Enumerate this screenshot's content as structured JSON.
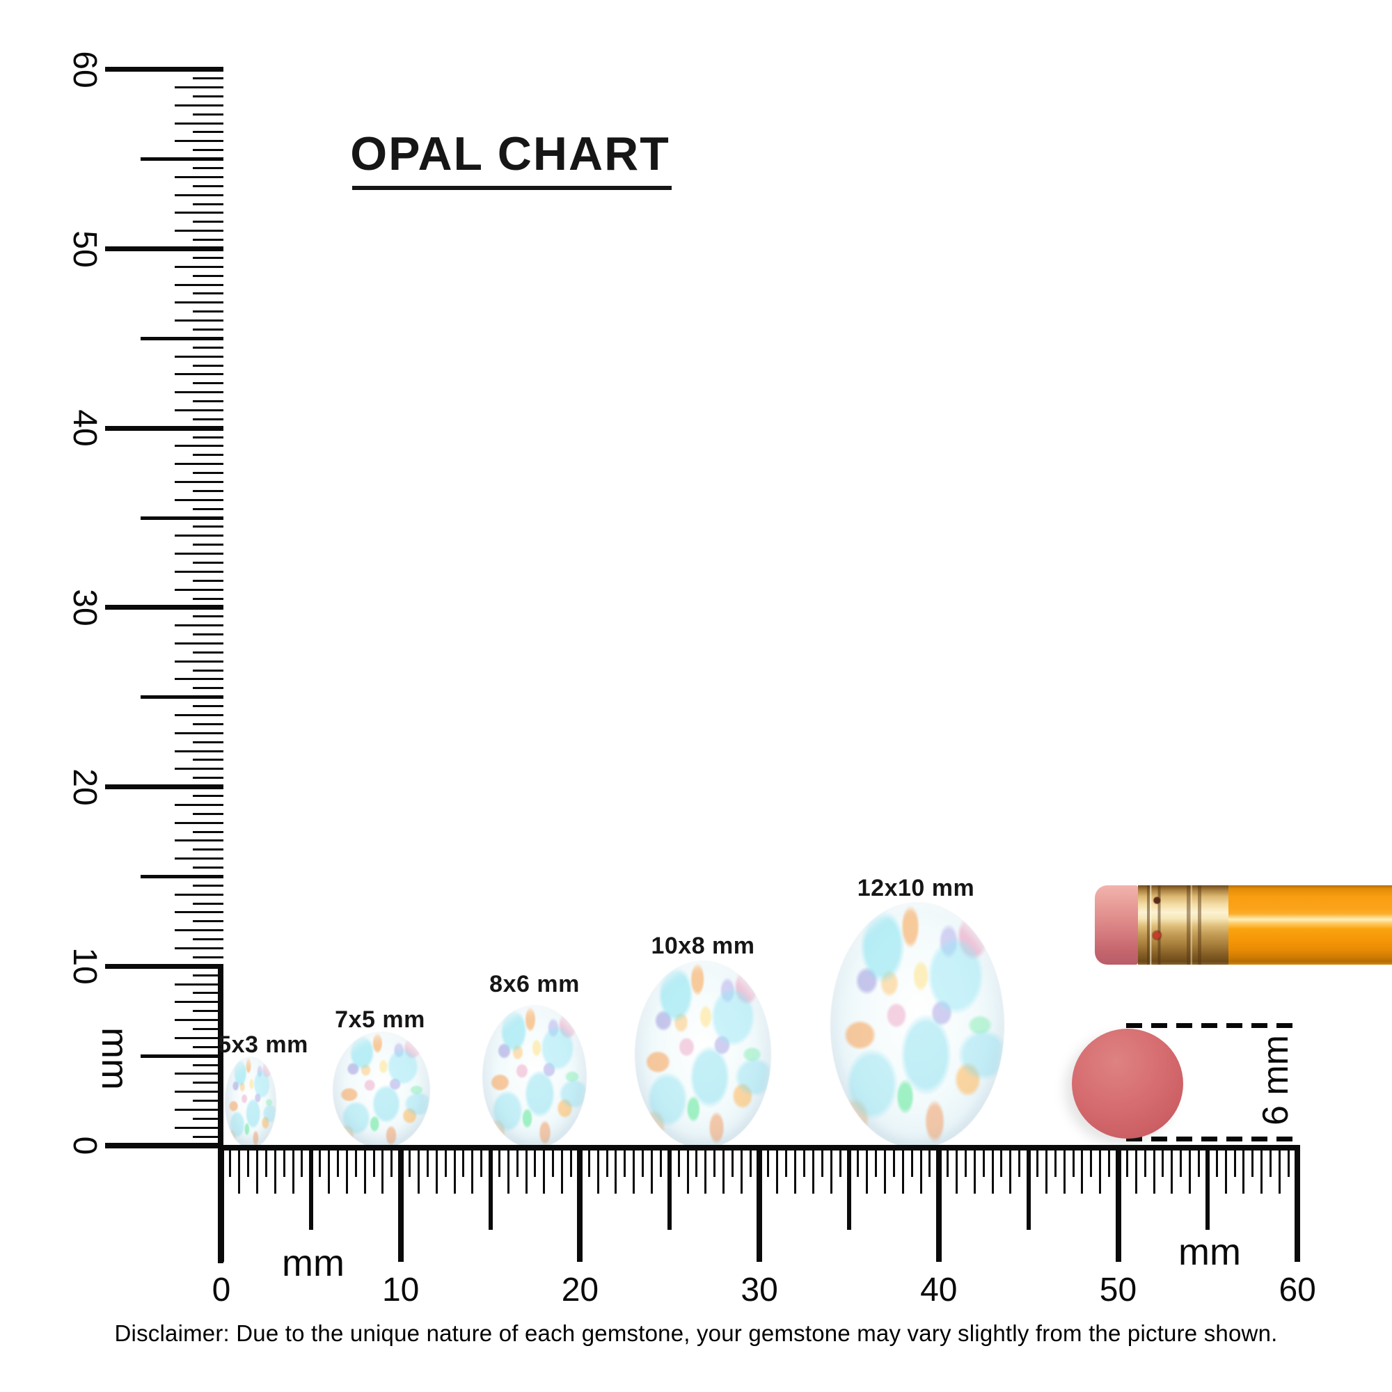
{
  "title": "OPAL CHART",
  "rulers": {
    "unit": "mm",
    "vertical_labels": [
      "0",
      "10",
      "20",
      "30",
      "40",
      "50",
      "60"
    ],
    "horizontal_labels": [
      "0",
      "10",
      "20",
      "30",
      "40",
      "50",
      "60"
    ]
  },
  "opals": [
    {
      "label": "5x3 mm",
      "width_mm": 3,
      "height_mm": 5
    },
    {
      "label": "7x5 mm",
      "width_mm": 5,
      "height_mm": 7
    },
    {
      "label": "8x6 mm",
      "width_mm": 6,
      "height_mm": 8
    },
    {
      "label": "10x8 mm",
      "width_mm": 8,
      "height_mm": 10
    },
    {
      "label": "12x10 mm",
      "width_mm": 10,
      "height_mm": 12
    }
  ],
  "annotation": {
    "label": "6 mm"
  },
  "disclaimer": "Disclaimer: Due to the unique nature of each gemstone, your gemstone may vary slightly from the picture shown.",
  "colors": {
    "ink": "#0a0a0a",
    "pencil_body": "#fba40f",
    "pencil_ferrule": "#e6c488",
    "pencil_eraser": "#e08d8c",
    "eraser_dot": "#d66d70",
    "opal_base": "#eaf5f8"
  }
}
